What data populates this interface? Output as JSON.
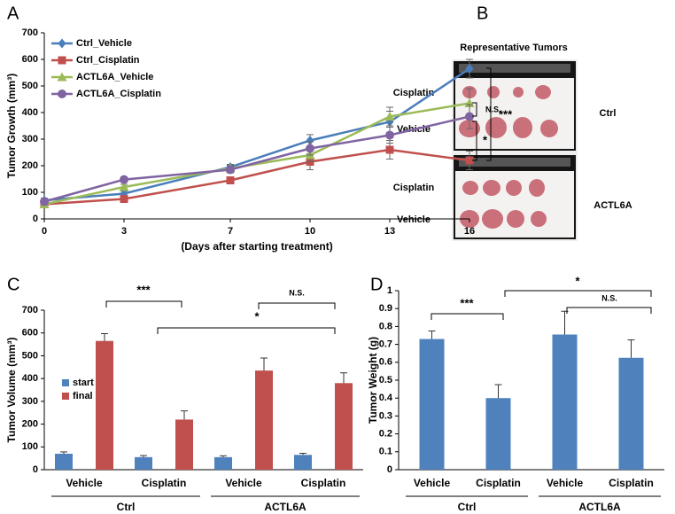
{
  "chart_data": [
    {
      "panel": "A",
      "type": "line",
      "xlabel": "(Days after starting treatment)",
      "ylabel": "Tumor Growth (mm³)",
      "x": [
        0,
        3,
        7,
        10,
        13,
        16
      ],
      "xlim": [
        0,
        16
      ],
      "xticks": [
        0,
        3,
        7,
        10,
        13,
        16
      ],
      "ylim": [
        0,
        700
      ],
      "yticks": [
        0,
        100,
        200,
        300,
        400,
        500,
        600,
        700
      ],
      "legend": "upper left",
      "series": [
        {
          "name": "Ctrl_Vehicle",
          "color": "#4a7ebb",
          "marker": "diamond",
          "values": [
            70,
            95,
            195,
            295,
            365,
            565
          ],
          "errors": [
            8,
            10,
            10,
            22,
            40,
            35
          ]
        },
        {
          "name": "Ctrl_Cisplatin",
          "color": "#c0504d",
          "marker": "square",
          "values": [
            55,
            75,
            145,
            215,
            260,
            220
          ],
          "errors": [
            6,
            8,
            12,
            30,
            35,
            35
          ]
        },
        {
          "name": "ACTL6A_Vehicle",
          "color": "#9bbb59",
          "marker": "triangle",
          "values": [
            55,
            120,
            190,
            240,
            385,
            435
          ],
          "errors": [
            6,
            10,
            12,
            25,
            35,
            55
          ]
        },
        {
          "name": "ACTL6A_Cisplatin",
          "color": "#8064a2",
          "marker": "circle",
          "values": [
            65,
            148,
            185,
            265,
            315,
            385
          ],
          "errors": [
            6,
            10,
            12,
            25,
            30,
            45
          ]
        }
      ],
      "annotations": [
        "N.S.",
        "***",
        "*"
      ]
    },
    {
      "panel": "C",
      "type": "grouped_bar",
      "ylabel": "Tumor Volume (mm³)",
      "categories": [
        "Vehicle",
        "Cisplatin",
        "Vehicle",
        "Cisplatin"
      ],
      "groups": [
        "Ctrl",
        "ACTL6A"
      ],
      "ylim": [
        0,
        700
      ],
      "yticks": [
        0,
        100,
        200,
        300,
        400,
        500,
        600,
        700
      ],
      "legend": "center left",
      "series": [
        {
          "name": "start",
          "color": "#4f81bd",
          "values": [
            70,
            55,
            55,
            65
          ],
          "errors": [
            8,
            7,
            6,
            7
          ]
        },
        {
          "name": "final",
          "color": "#c0504d",
          "values": [
            565,
            220,
            435,
            380
          ],
          "errors": [
            32,
            38,
            55,
            45
          ]
        }
      ],
      "annotations": [
        "***",
        "N.S.",
        "*"
      ]
    },
    {
      "panel": "D",
      "type": "bar",
      "ylabel": "Tumor Weight (g)",
      "categories": [
        "Vehicle",
        "Cisplatin",
        "Vehicle",
        "Cisplatin"
      ],
      "groups": [
        "Ctrl",
        "ACTL6A"
      ],
      "ylim": [
        0,
        1
      ],
      "yticks": [
        0,
        0.1,
        0.2,
        0.3,
        0.4,
        0.5,
        0.6,
        0.7,
        0.8,
        0.9,
        1
      ],
      "color": "#4f81bd",
      "values": [
        0.73,
        0.4,
        0.755,
        0.625
      ],
      "errors": [
        0.045,
        0.075,
        0.13,
        0.1
      ],
      "annotations": [
        "***",
        "*",
        "N.S."
      ]
    }
  ],
  "panel_b": {
    "panel": "B",
    "title": "Representative Tumors",
    "rows": [
      "Cisplatin",
      "Vehicle",
      "Cisplatin",
      "Vehicle"
    ],
    "groups": [
      "Ctrl",
      "ACTL6A"
    ]
  }
}
